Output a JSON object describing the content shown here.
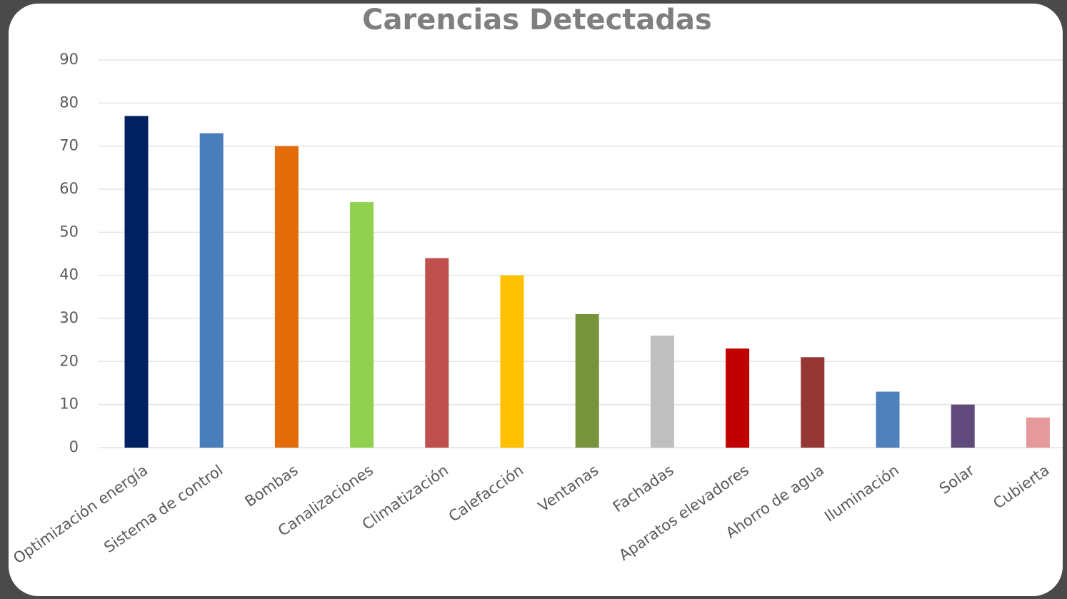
{
  "chart_data": {
    "type": "bar",
    "title": "Carencias Detectadas",
    "categories": [
      "Optimización energía",
      "Sistema de control",
      "Bombas",
      "Canalizaciones",
      "Climatización",
      "Calefacción",
      "Ventanas",
      "Fachadas",
      "Aparatos elevadores",
      "Ahorro de agua",
      "Iluminación",
      "Solar",
      "Cubierta"
    ],
    "values": [
      77,
      73,
      70,
      57,
      44,
      40,
      31,
      26,
      23,
      21,
      13,
      10,
      7
    ],
    "colors": [
      "#002060",
      "#4a7ebb",
      "#e36c0a",
      "#92d050",
      "#c0504d",
      "#ffc000",
      "#77933c",
      "#bfbfbf",
      "#c00000",
      "#953735",
      "#4f81bd",
      "#604a7b",
      "#e6999a"
    ],
    "ylim": [
      0,
      90
    ],
    "yticks": [
      0,
      10,
      20,
      30,
      40,
      50,
      60,
      70,
      80,
      90
    ],
    "grid": true
  }
}
